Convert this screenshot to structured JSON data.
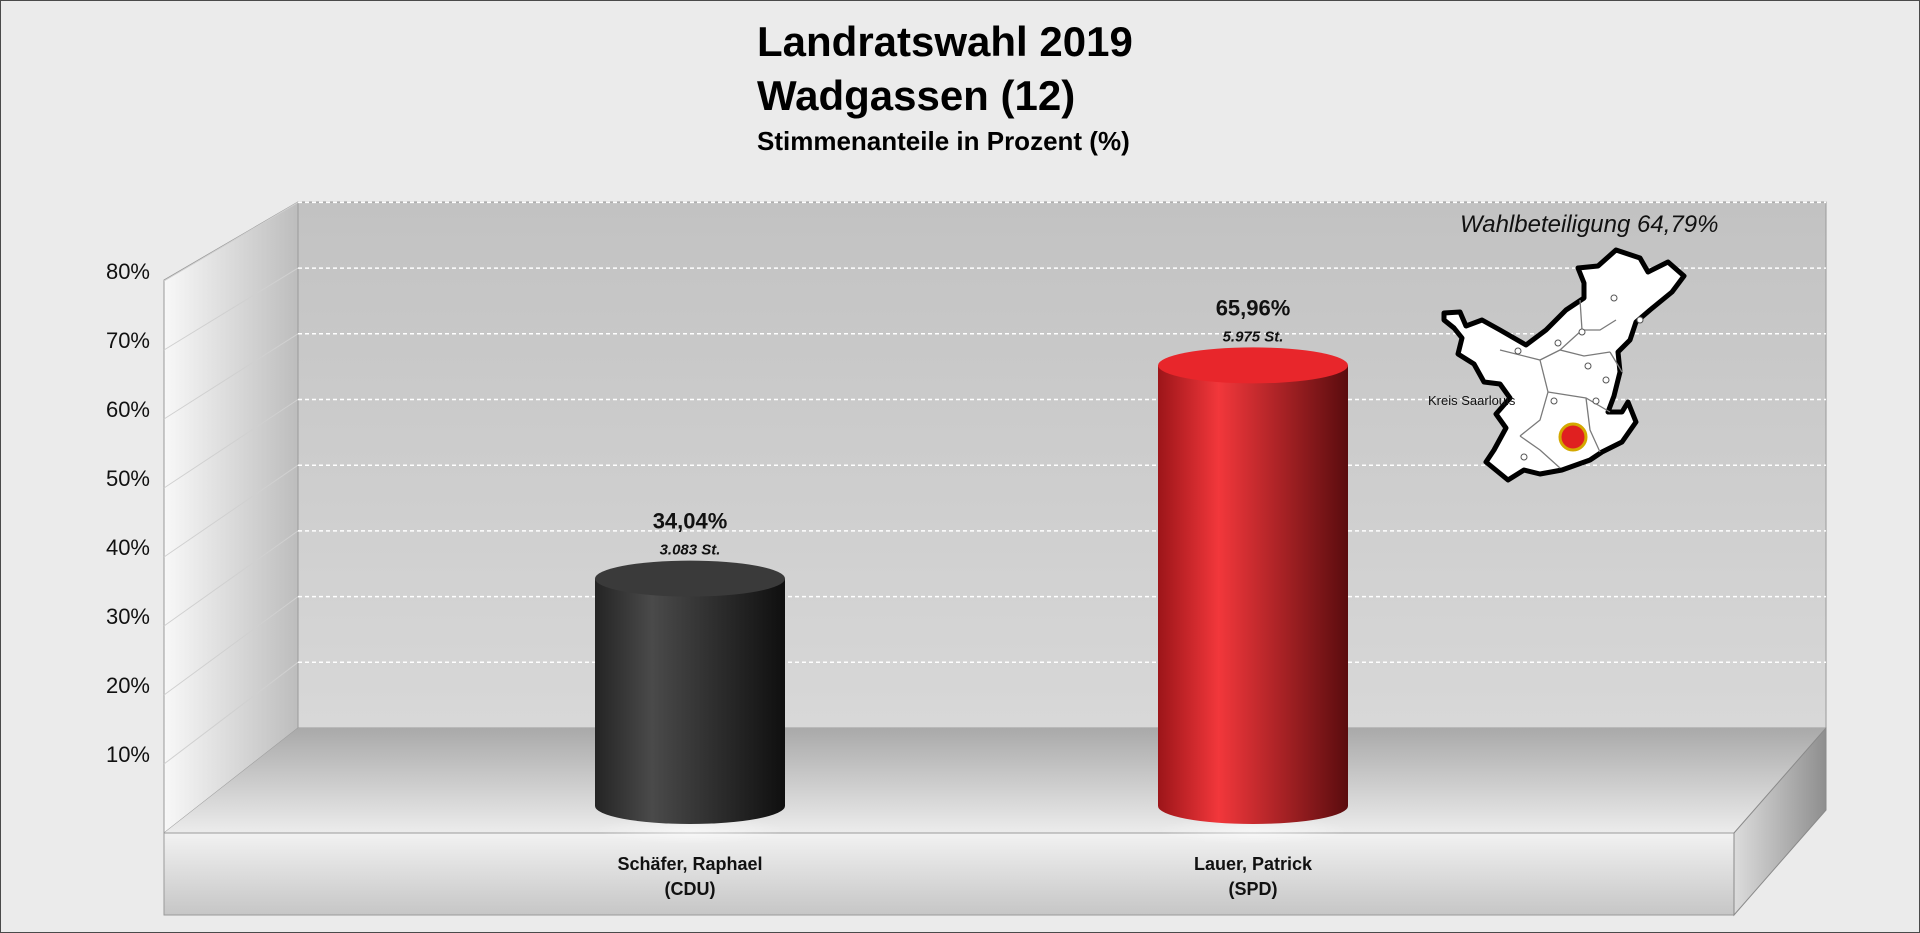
{
  "chart_data": {
    "type": "bar",
    "title": "Landratswahl 2019",
    "subtitle": "Wadgassen (12)",
    "ylabel": "Stimmenanteile in Prozent (%)",
    "ylim": [
      0,
      80
    ],
    "yticks": [
      10,
      20,
      30,
      40,
      50,
      60,
      70,
      80
    ],
    "ytick_labels": [
      "10%",
      "20%",
      "30%",
      "40%",
      "50%",
      "60%",
      "70%",
      "80%"
    ],
    "grid": true,
    "bars": [
      {
        "name": "Schäfer, Raphael",
        "party": "(CDU)",
        "value": 34.04,
        "value_label": "34,04%",
        "votes_label": "3.083 St.",
        "color": "#3a3a3a"
      },
      {
        "name": "Lauer, Patrick",
        "party": "(SPD)",
        "value": 65.96,
        "value_label": "65,96%",
        "votes_label": "5.975 St.",
        "color": "#e8262b"
      }
    ],
    "annotation": "Wahlbeteiligung 64,79%",
    "map_label": "Kreis Saarlouis"
  }
}
